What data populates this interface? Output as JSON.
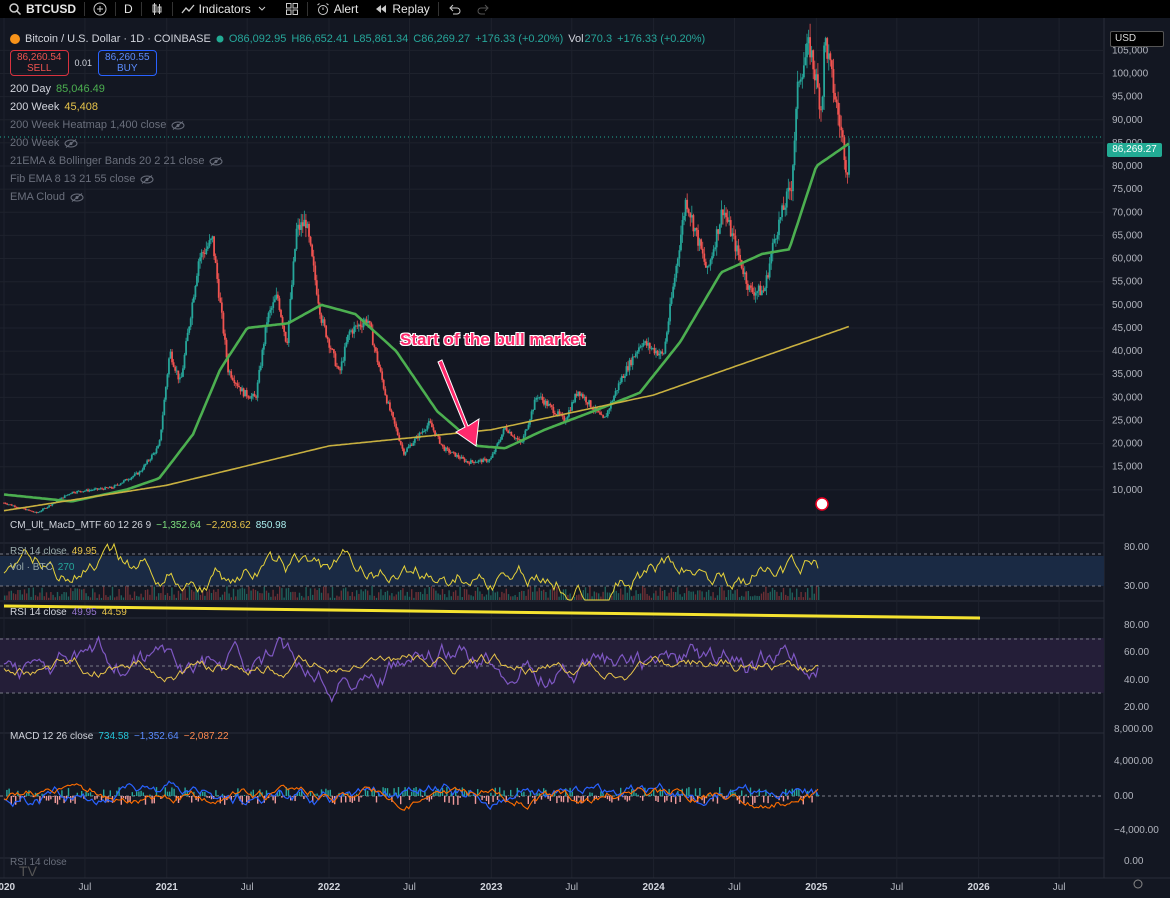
{
  "toolbar": {
    "symbol": "BTCUSD",
    "interval": "D",
    "indicators_label": "Indicators",
    "alert_label": "Alert",
    "replay_label": "Replay"
  },
  "header": {
    "title": "Bitcoin / U.S. Dollar · 1D · COINBASE",
    "ohlc": {
      "o": "O86,092.95",
      "h": "H86,652.41",
      "l": "L85,861.34",
      "c": "C86,269.27",
      "chg": "+176.33 (+0.20%)"
    },
    "vol": {
      "label": "Vol",
      "value": "270.3",
      "chg": "+176.33 (+0.20%)"
    },
    "sell": {
      "price": "86,260.54",
      "label": "SELL"
    },
    "spread": "0.01",
    "buy": {
      "price": "86,260.55",
      "label": "BUY"
    }
  },
  "legend": [
    {
      "name": "200 Day",
      "value": "85,046.49",
      "color": "#4caf50",
      "hidden": false
    },
    {
      "name": "200 Week",
      "value": "45,408",
      "color": "#e6c34a",
      "hidden": false
    },
    {
      "name": "200 Week Heatmap 1,400 close",
      "value": "",
      "hidden": true
    },
    {
      "name": "200 Week",
      "value": "",
      "hidden": true
    },
    {
      "name": "21EMA & Bollinger Bands 20 2 21 close",
      "value": "",
      "hidden": true
    },
    {
      "name": "Fib EMA 8 13 21 55 close",
      "value": "",
      "hidden": true
    },
    {
      "name": "EMA Cloud",
      "value": "",
      "hidden": true
    }
  ],
  "currency": "USD",
  "last_price": "86,269.27",
  "annotation": "Start of the bull market",
  "panes": {
    "macd_mtf": {
      "name": "CM_Ult_MacD_MTF 60 12 26 9",
      "v1": "−1,352.64",
      "v2": "−2,203.62",
      "v3": "850.98"
    },
    "rsi_small": {
      "name": "RSI 14 close",
      "value": "49.95",
      "ticks": [
        "80.00",
        "30.00"
      ]
    },
    "vol_small": {
      "name": "Vol · BTC",
      "value": "270"
    },
    "rsi": {
      "name": "RSI 14 close",
      "v1": "49.95",
      "v2": "44.59",
      "ticks": [
        "80.00",
        "60.00",
        "40.00",
        "20.00"
      ]
    },
    "macd": {
      "name": "MACD 12 26 close",
      "v1": "734.58",
      "v2": "−1,352.64",
      "v3": "−2,087.22",
      "ticks": [
        "8,000.00",
        "4,000.00",
        "0.00",
        "−4,000.00"
      ]
    },
    "rsi_bottom": {
      "name": "RSI 14 close",
      "tick": "0.00"
    }
  },
  "x_ticks": [
    "2020",
    "Jul",
    "2021",
    "Jul",
    "2022",
    "Jul",
    "2023",
    "Jul",
    "2024",
    "Jul",
    "2025",
    "Jul",
    "2026",
    "Jul"
  ],
  "chart_data": {
    "type": "line",
    "title": "Bitcoin / U.S. Dollar · 1D · COINBASE",
    "y_ticks": [
      105000,
      100000,
      95000,
      90000,
      85000,
      80000,
      75000,
      70000,
      65000,
      60000,
      55000,
      50000,
      45000,
      40000,
      35000,
      30000,
      25000,
      20000,
      15000,
      10000
    ],
    "ylim": [
      5000,
      112000
    ],
    "xlim": [
      "2020-01-01",
      "2026-10-01"
    ],
    "series": [
      {
        "name": "",
        "color": "#9ea3ae",
        "x": [
          "2020-01-01",
          "2020-03-15",
          "2020-06-01",
          "2020-09-01",
          "2020-11-01",
          "2020-12-15",
          "2021-01-08",
          "2021-02-01",
          "2021-03-14",
          "2021-04-14",
          "2021-05-19",
          "2021-06-22",
          "2021-07-20",
          "2021-08-15",
          "2021-09-07",
          "2021-09-28",
          "2021-10-20",
          "2021-11-10",
          "2021-12-15",
          "2022-01-24",
          "2022-02-15",
          "2022-03-29",
          "2022-05-12",
          "2022-06-18",
          "2022-08-15",
          "2022-09-15",
          "2022-11-09",
          "2022-12-30",
          "2023-02-01",
          "2023-03-10",
          "2023-04-14",
          "2023-06-15",
          "2023-07-15",
          "2023-09-11",
          "2023-10-20",
          "2023-12-05",
          "2024-01-23",
          "2024-03-14",
          "2024-05-01",
          "2024-06-05",
          "2024-08-05",
          "2024-09-06",
          "2024-09-30",
          "2024-11-06",
          "2024-11-22",
          "2024-12-17",
          "2025-01-13",
          "2025-01-20",
          "2025-02-10",
          "2025-03-04",
          "2025-03-11",
          "2025-03-18"
        ],
        "y": [
          7200,
          5000,
          9500,
          10500,
          13800,
          19500,
          40000,
          33000,
          60000,
          64000,
          36000,
          31000,
          29800,
          47000,
          52000,
          41500,
          66000,
          68000,
          47000,
          35000,
          44000,
          47000,
          29000,
          18000,
          24500,
          19000,
          16000,
          16500,
          23500,
          20000,
          30500,
          25000,
          31500,
          25000,
          34000,
          42000,
          39000,
          73000,
          57000,
          71000,
          53000,
          53000,
          65000,
          76000,
          99000,
          106000,
          92000,
          108000,
          96000,
          84000,
          78500,
          86269
        ]
      },
      {
        "name": "",
        "color": "#4caf50",
        "x": [
          "2020-01-01",
          "2020-06-01",
          "2020-10-01",
          "2020-12-15",
          "2021-03-01",
          "2021-05-01",
          "2021-07-01",
          "2021-10-01",
          "2021-12-15",
          "2022-03-01",
          "2022-06-01",
          "2022-09-01",
          "2022-12-01",
          "2023-02-01",
          "2023-05-01",
          "2023-09-01",
          "2023-12-01",
          "2024-03-01",
          "2024-06-01",
          "2024-09-01",
          "2024-11-01",
          "2025-01-01",
          "2025-03-18"
        ],
        "y": [
          9000,
          7500,
          10000,
          12500,
          22000,
          36000,
          45000,
          46000,
          50000,
          48000,
          40000,
          27000,
          19500,
          19000,
          23000,
          27500,
          31000,
          42000,
          57000,
          61000,
          62000,
          80000,
          85046
        ]
      },
      {
        "name": "",
        "color": "#c8b040",
        "x": [
          "2020-01-01",
          "2021-01-01",
          "2022-01-01",
          "2023-01-01",
          "2024-01-01",
          "2025-03-18"
        ],
        "y": [
          5500,
          11000,
          19500,
          23000,
          30500,
          45408
        ]
      }
    ]
  },
  "colors": {
    "up": "#26a69a",
    "down": "#ef5350",
    "ma200": "#4caf50",
    "ma200w": "#c8b040",
    "rsi": "#7e57c2",
    "rsi_sma": "#e6c34a",
    "macd": "#2962ff",
    "signal": "#ff6d00",
    "annotation": "#ff2a6d"
  }
}
